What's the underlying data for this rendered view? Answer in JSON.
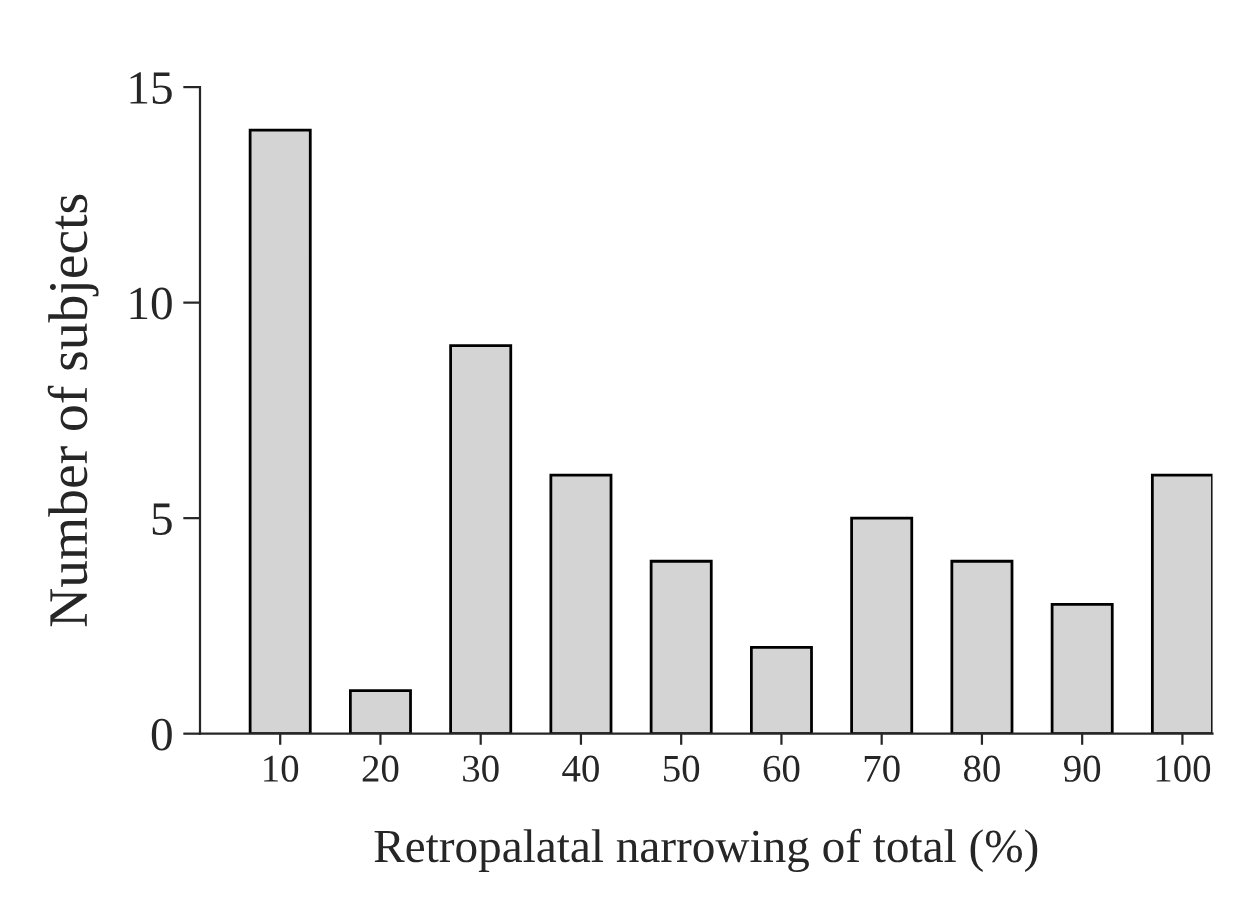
{
  "chart_data": {
    "type": "bar",
    "categories": [
      "10",
      "20",
      "30",
      "40",
      "50",
      "60",
      "70",
      "80",
      "90",
      "100"
    ],
    "values": [
      14,
      1,
      9,
      6,
      4,
      2,
      5,
      4,
      3,
      6
    ],
    "color": "#d4d4d4",
    "xlabel": "Retropalatal narrowing of total (%)",
    "ylabel": "Number of subjects",
    "ylim": [
      0,
      15
    ],
    "yticks": [
      0,
      5,
      10,
      15
    ],
    "grid": false
  }
}
